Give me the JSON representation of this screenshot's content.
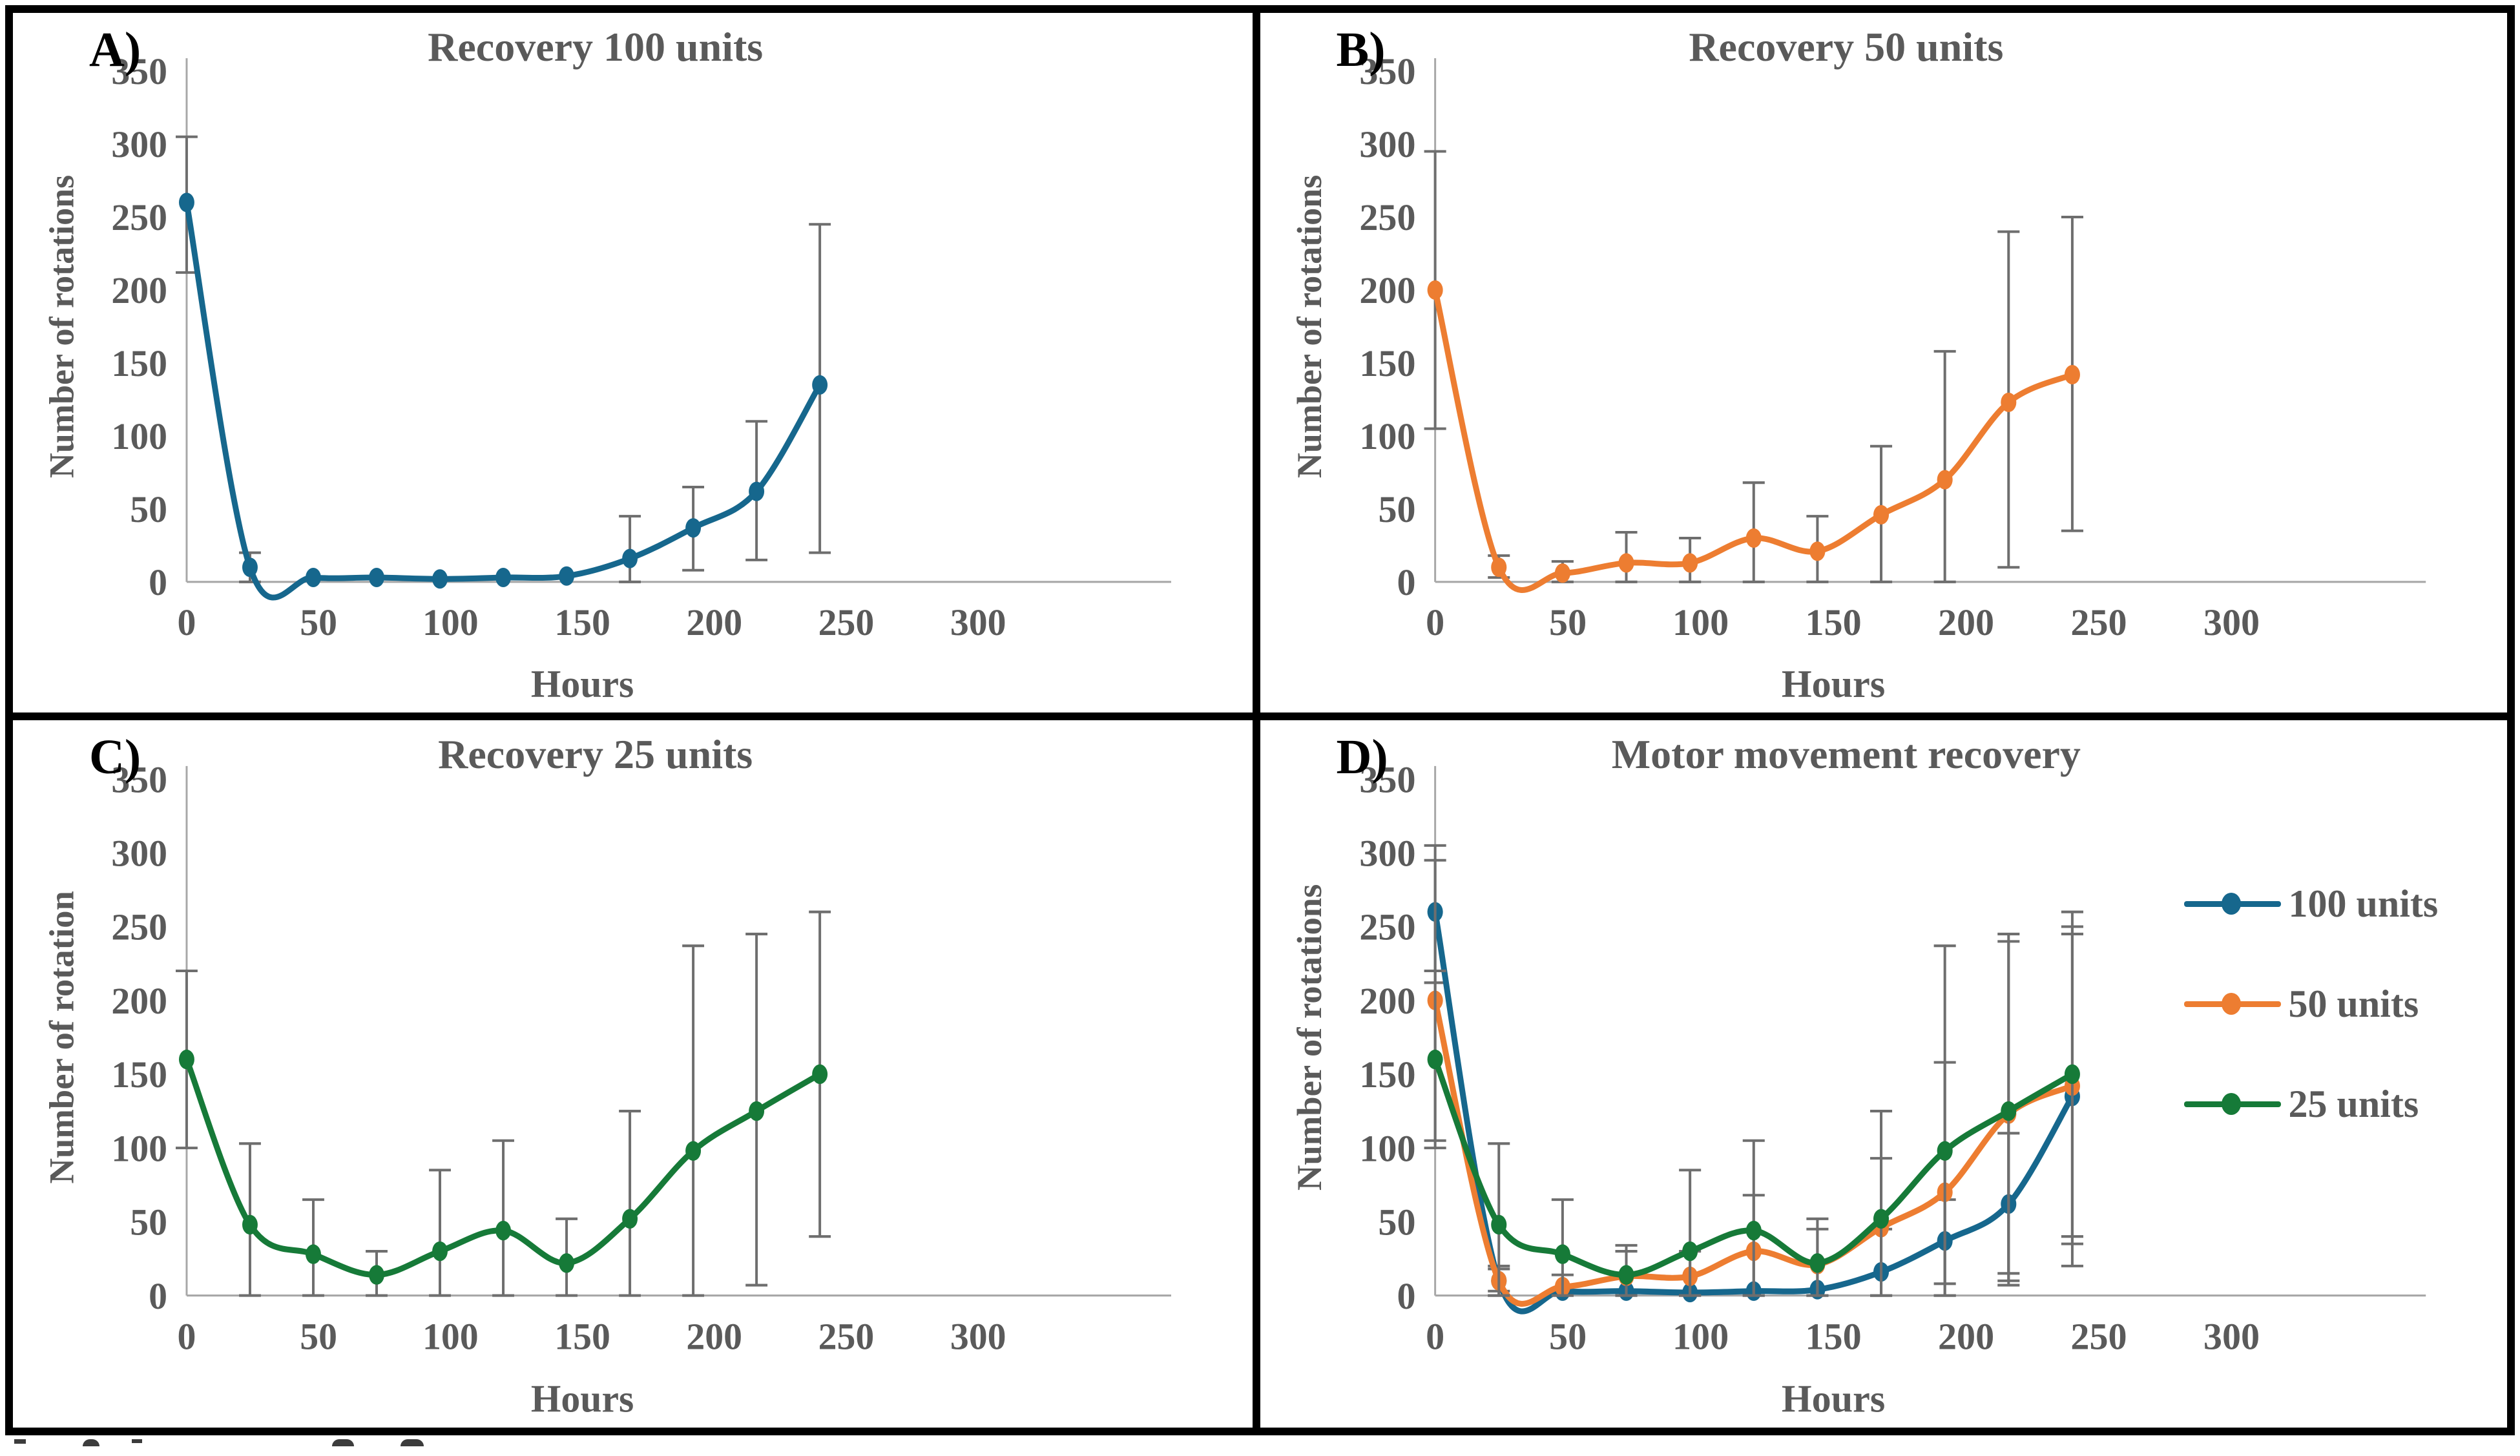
{
  "colors": {
    "blue": "#16678d",
    "orange": "#ed7d31",
    "green": "#167a38",
    "axis_line": "#a8a8a8",
    "error_bar": "#6e6e6e",
    "text": "#5a5a5a",
    "panel_letter": "#000000",
    "border": "#000000",
    "background": "#ffffff"
  },
  "chart_data": [
    {
      "id": "A",
      "type": "line",
      "panel_label": "A)",
      "title": "Recovery 100 units",
      "xlabel": "Hours",
      "ylabel": "Number of rotations",
      "xlim": [
        0,
        300
      ],
      "ylim": [
        0,
        350
      ],
      "xticks": [
        0,
        50,
        100,
        150,
        200,
        250,
        300
      ],
      "yticks": [
        0,
        50,
        100,
        150,
        200,
        250,
        300,
        350
      ],
      "grid": false,
      "legend": {
        "show": false
      },
      "x": [
        0,
        24,
        48,
        72,
        96,
        120,
        144,
        168,
        192,
        216,
        240
      ],
      "series": [
        {
          "name": "100 units",
          "color": "blue",
          "values": [
            260,
            10,
            3,
            3,
            2,
            3,
            4,
            16,
            37,
            62,
            135
          ],
          "err_upper": [
            305,
            20,
            3,
            3,
            2,
            3,
            4,
            45,
            65,
            110,
            245
          ],
          "err_lower": [
            212,
            0,
            3,
            3,
            2,
            3,
            4,
            0,
            8,
            15,
            20
          ]
        }
      ]
    },
    {
      "id": "B",
      "type": "line",
      "panel_label": "B)",
      "title": "Recovery 50 units",
      "xlabel": "Hours",
      "ylabel": "Number of rotations",
      "xlim": [
        0,
        300
      ],
      "ylim": [
        0,
        350
      ],
      "xticks": [
        0,
        50,
        100,
        150,
        200,
        250,
        300
      ],
      "yticks": [
        0,
        50,
        100,
        150,
        200,
        250,
        300,
        350
      ],
      "grid": false,
      "legend": {
        "show": false
      },
      "x": [
        0,
        24,
        48,
        72,
        96,
        120,
        144,
        168,
        192,
        216,
        240
      ],
      "series": [
        {
          "name": "50 units",
          "color": "orange",
          "values": [
            200,
            10,
            6,
            13,
            13,
            30,
            21,
            46,
            70,
            123,
            142
          ],
          "err_upper": [
            295,
            18,
            14,
            34,
            30,
            68,
            45,
            93,
            158,
            240,
            250
          ],
          "err_lower": [
            105,
            3,
            0,
            0,
            0,
            0,
            0,
            0,
            0,
            10,
            35
          ]
        }
      ]
    },
    {
      "id": "C",
      "type": "line",
      "panel_label": "C)",
      "title": "Recovery 25 units",
      "xlabel": "Hours",
      "ylabel": "Number of rotation",
      "xlim": [
        0,
        300
      ],
      "ylim": [
        0,
        350
      ],
      "xticks": [
        0,
        50,
        100,
        150,
        200,
        250,
        300
      ],
      "yticks": [
        0,
        50,
        100,
        150,
        200,
        250,
        300,
        350
      ],
      "grid": false,
      "legend": {
        "show": false
      },
      "x": [
        0,
        24,
        48,
        72,
        96,
        120,
        144,
        168,
        192,
        216,
        240
      ],
      "series": [
        {
          "name": "25 units",
          "color": "green",
          "values": [
            160,
            48,
            28,
            14,
            30,
            44,
            22,
            52,
            98,
            125,
            150
          ],
          "err_upper": [
            220,
            103,
            65,
            30,
            85,
            105,
            52,
            125,
            237,
            245,
            260
          ],
          "err_lower": [
            100,
            0,
            0,
            0,
            0,
            0,
            0,
            0,
            0,
            7,
            40
          ]
        }
      ]
    },
    {
      "id": "D",
      "type": "line",
      "panel_label": "D)",
      "title": "Motor movement recovery",
      "xlabel": "Hours",
      "ylabel": "Number of rotations",
      "xlim": [
        0,
        300
      ],
      "ylim": [
        0,
        350
      ],
      "xticks": [
        0,
        50,
        100,
        150,
        200,
        250,
        300
      ],
      "yticks": [
        0,
        50,
        100,
        150,
        200,
        250,
        300,
        350
      ],
      "grid": false,
      "legend": {
        "show": true,
        "position": "top-right",
        "entries": [
          "100 units",
          "50 units",
          "25 units"
        ]
      },
      "x": [
        0,
        24,
        48,
        72,
        96,
        120,
        144,
        168,
        192,
        216,
        240
      ],
      "series": [
        {
          "name": "100 units",
          "color": "blue",
          "values": [
            260,
            10,
            3,
            3,
            2,
            3,
            4,
            16,
            37,
            62,
            135
          ],
          "err_upper": [
            305,
            20,
            3,
            3,
            2,
            3,
            4,
            45,
            65,
            110,
            245
          ],
          "err_lower": [
            212,
            0,
            3,
            3,
            2,
            3,
            4,
            0,
            8,
            15,
            20
          ]
        },
        {
          "name": "50 units",
          "color": "orange",
          "values": [
            200,
            10,
            6,
            13,
            13,
            30,
            21,
            46,
            70,
            123,
            142
          ],
          "err_upper": [
            295,
            18,
            14,
            34,
            30,
            68,
            45,
            93,
            158,
            240,
            250
          ],
          "err_lower": [
            105,
            3,
            0,
            0,
            0,
            0,
            0,
            0,
            0,
            10,
            35
          ]
        },
        {
          "name": "25 units",
          "color": "green",
          "values": [
            160,
            48,
            28,
            14,
            30,
            44,
            22,
            52,
            98,
            125,
            150
          ],
          "err_upper": [
            220,
            103,
            65,
            30,
            85,
            105,
            52,
            125,
            237,
            245,
            260
          ],
          "err_lower": [
            100,
            0,
            0,
            0,
            0,
            0,
            0,
            0,
            0,
            7,
            40
          ]
        }
      ]
    }
  ]
}
